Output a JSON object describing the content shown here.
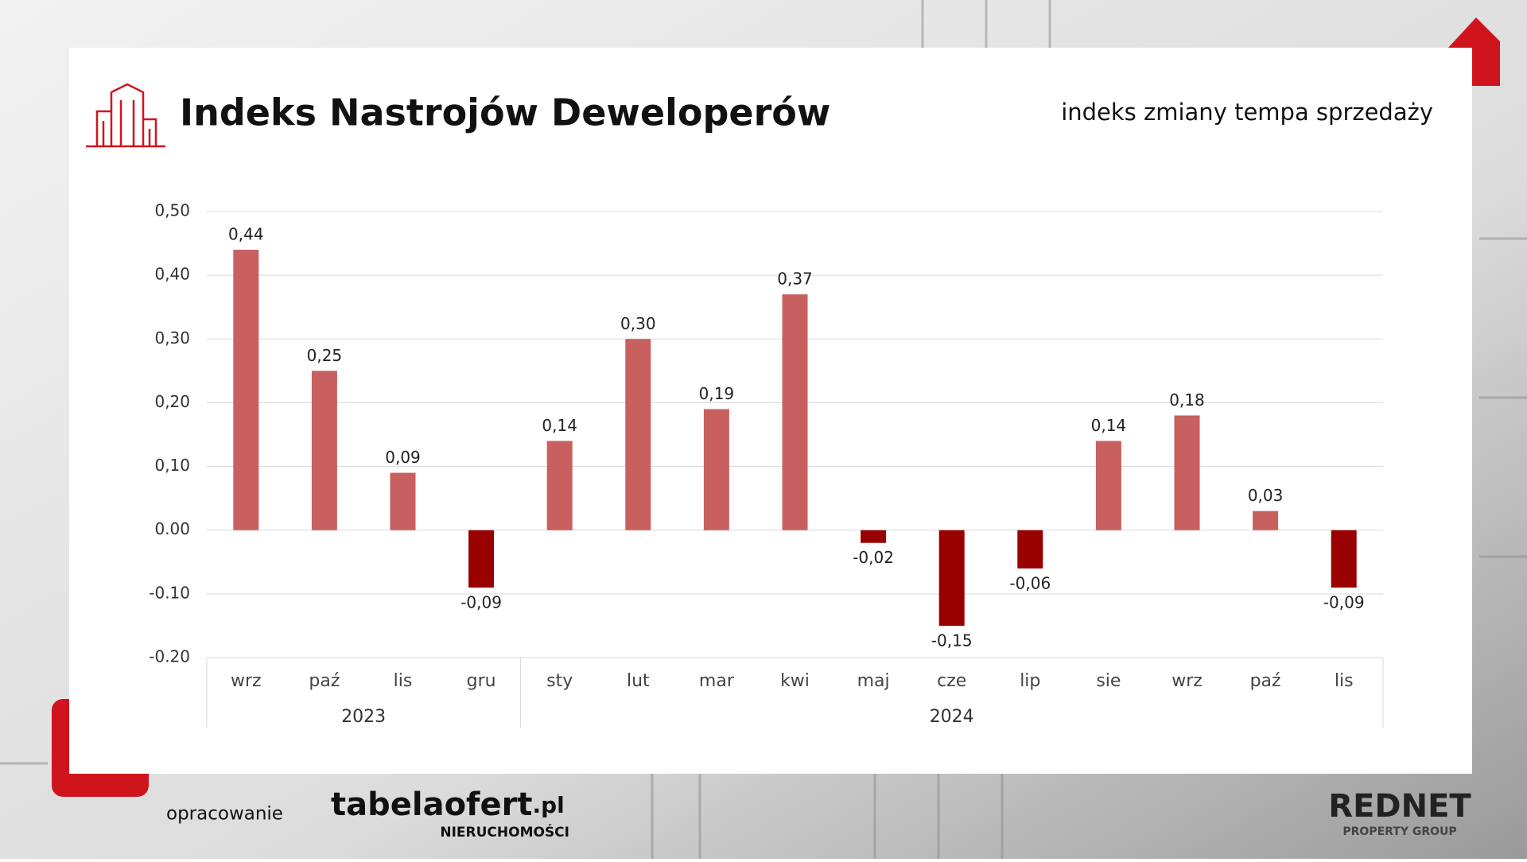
{
  "chart_data": {
    "type": "bar",
    "title": "Indeks Nastrojów Deweloperów",
    "subtitle": "indeks zmiany tempa sprzedaży",
    "categories": [
      "wrz",
      "paź",
      "lis",
      "gru",
      "sty",
      "lut",
      "mar",
      "kwi",
      "maj",
      "cze",
      "lip",
      "sie",
      "wrz",
      "paź",
      "lis"
    ],
    "groups": [
      {
        "label": "2023",
        "count": 4
      },
      {
        "label": "2024",
        "count": 11
      }
    ],
    "values": [
      0.44,
      0.25,
      0.09,
      -0.09,
      0.14,
      0.3,
      0.19,
      0.37,
      -0.02,
      -0.15,
      -0.06,
      0.14,
      0.18,
      0.03,
      -0.09
    ],
    "value_labels": [
      "0,44",
      "0,25",
      "0,09",
      "-0,09",
      "0,14",
      "0,30",
      "0,19",
      "0,37",
      "-0,02",
      "-0,15",
      "-0,06",
      "0,14",
      "0,18",
      "0,03",
      "-0,09"
    ],
    "color": "#c86060",
    "negative_color": "#990000",
    "ylim": [
      -0.2,
      0.5
    ],
    "yticks": [
      {
        "value": -0.2,
        "label": "-0.20"
      },
      {
        "value": -0.1,
        "label": "-0.10"
      },
      {
        "value": 0,
        "label": "0.00"
      },
      {
        "value": 0.1,
        "label": "0,10"
      },
      {
        "value": 0.2,
        "label": "0,20"
      },
      {
        "value": 0.3,
        "label": "0,30"
      },
      {
        "value": 0.4,
        "label": "0,40"
      },
      {
        "value": 0.5,
        "label": "0,50"
      }
    ],
    "grid": true
  },
  "footer": {
    "credit": "opracowanie",
    "logo_left": "tabelaofert",
    "logo_left_suffix": ".pl",
    "logo_left_sub": "NIERUCHOMOŚCI",
    "logo_right": "REDNET",
    "logo_right_sub": "PROPERTY GROUP"
  }
}
